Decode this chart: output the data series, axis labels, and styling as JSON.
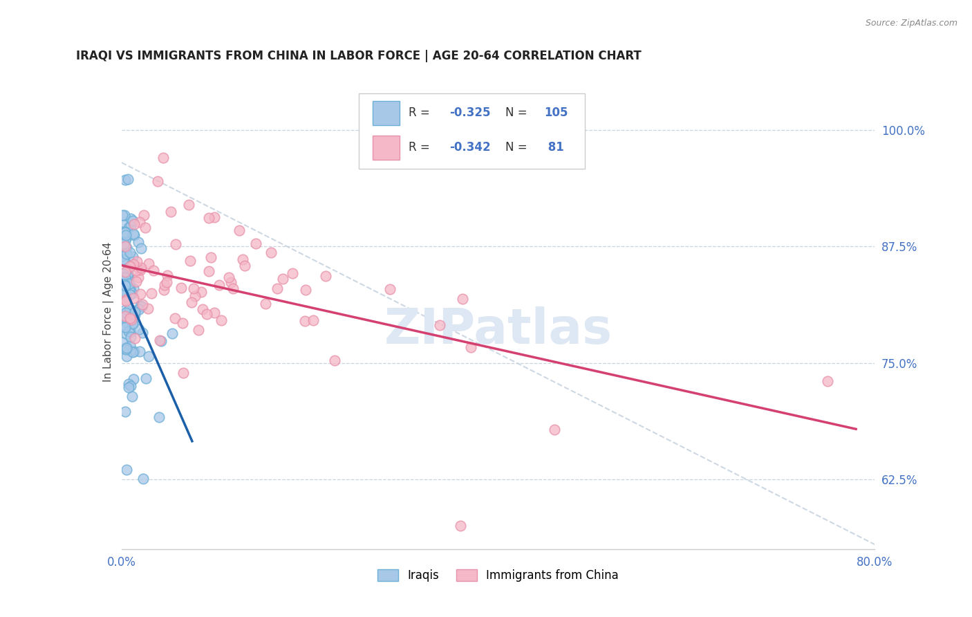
{
  "title": "IRAQI VS IMMIGRANTS FROM CHINA IN LABOR FORCE | AGE 20-64 CORRELATION CHART",
  "source": "Source: ZipAtlas.com",
  "ylabel": "In Labor Force | Age 20-64",
  "ytick_labels": [
    "62.5%",
    "75.0%",
    "87.5%",
    "100.0%"
  ],
  "ytick_values": [
    0.625,
    0.75,
    0.875,
    1.0
  ],
  "xlim": [
    0.0,
    0.8
  ],
  "ylim": [
    0.55,
    1.06
  ],
  "color_iraqi": "#a8c8e8",
  "color_iraqi_edge": "#6baed6",
  "color_china": "#f4b8c8",
  "color_china_edge": "#e891aa",
  "color_iraqi_line": "#1a5fa8",
  "color_china_line": "#d44070",
  "color_dashed_line": "#c8d4e0",
  "watermark_color": "#dde8f4",
  "legend_r1": "-0.325",
  "legend_n1": "105",
  "legend_r2": "-0.342",
  "legend_n2": " 81",
  "iraqi_seed": 123,
  "china_seed": 456
}
